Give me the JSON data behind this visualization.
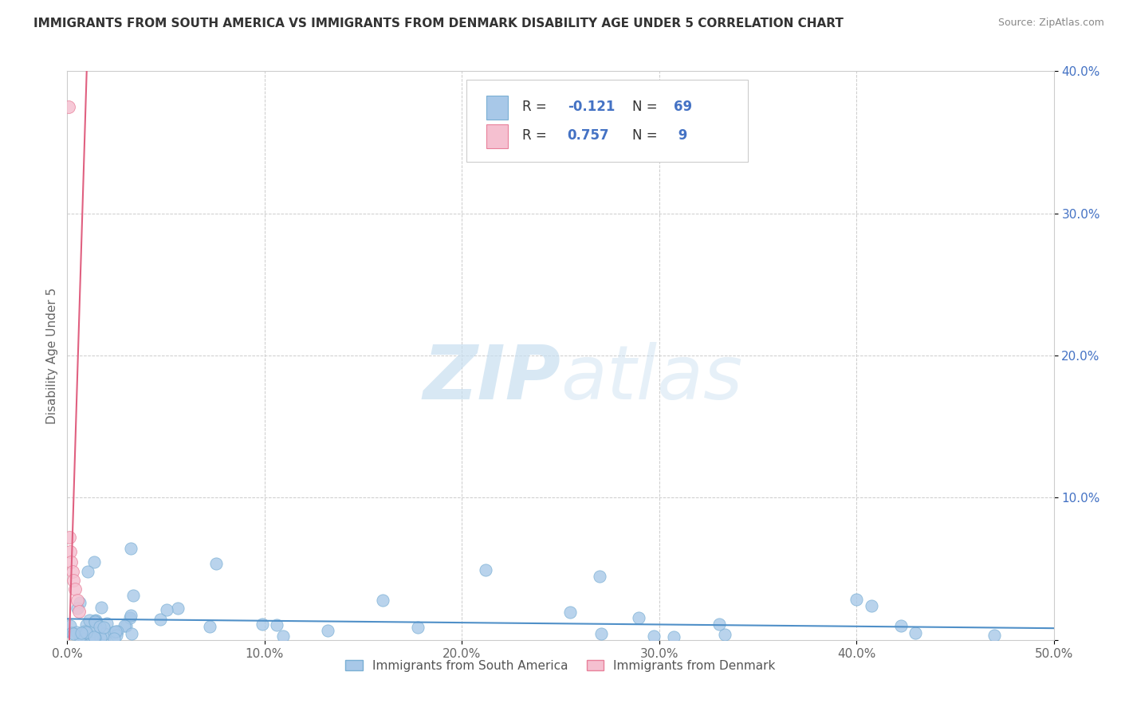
{
  "title": "IMMIGRANTS FROM SOUTH AMERICA VS IMMIGRANTS FROM DENMARK DISABILITY AGE UNDER 5 CORRELATION CHART",
  "source": "Source: ZipAtlas.com",
  "ylabel": "Disability Age Under 5",
  "xlim": [
    0.0,
    0.5
  ],
  "ylim": [
    0.0,
    0.4
  ],
  "xticks": [
    0.0,
    0.1,
    0.2,
    0.3,
    0.4,
    0.5
  ],
  "xtick_labels": [
    "0.0%",
    "10.0%",
    "20.0%",
    "30.0%",
    "40.0%",
    "50.0%"
  ],
  "yticks": [
    0.0,
    0.1,
    0.2,
    0.3,
    0.4
  ],
  "ytick_labels": [
    "",
    "10.0%",
    "20.0%",
    "30.0%",
    "40.0%"
  ],
  "south_america_color": "#a8c8e8",
  "south_america_edge": "#7aafd4",
  "denmark_color": "#f5c0d0",
  "denmark_edge": "#e8809a",
  "regression_south_color": "#5090c8",
  "regression_denmark_color": "#e06080",
  "R_south": -0.121,
  "N_south": 69,
  "R_denmark": 0.757,
  "N_denmark": 9,
  "watermark_color": "#c8dff0",
  "background_color": "#ffffff",
  "grid_color": "#cccccc",
  "title_color": "#333333",
  "source_color": "#888888",
  "ylabel_color": "#666666",
  "ytick_color": "#4472c4",
  "xtick_color": "#666666",
  "legend_r_color": "#4472c4",
  "legend_label_color": "#555555"
}
